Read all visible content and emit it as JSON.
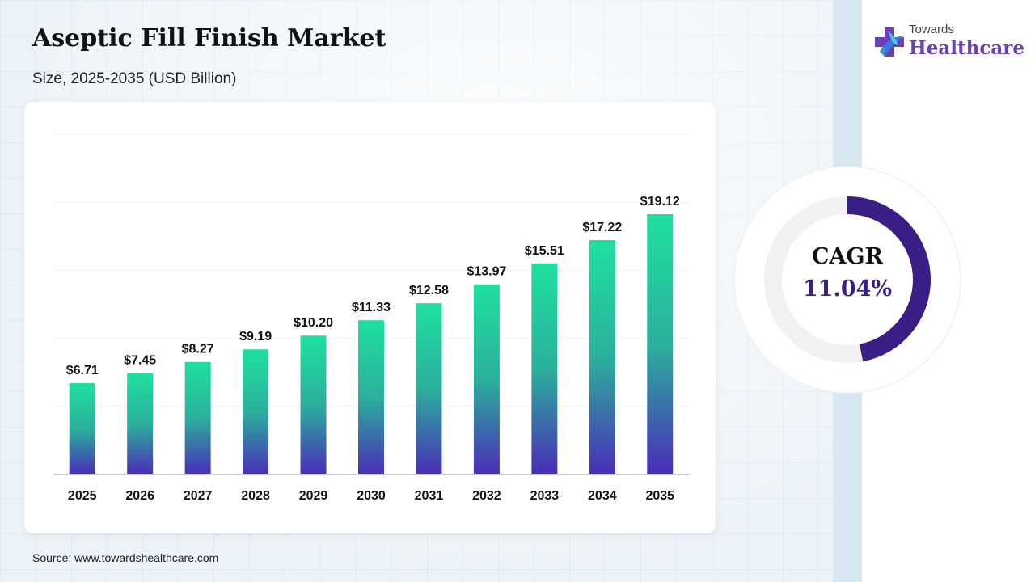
{
  "title": "Aseptic Fill Finish Market",
  "subtitle": "Size, 2025-2035 (USD Billion)",
  "source": "Source: www.towardshealthcare.com",
  "logo": {
    "line1": "Towards",
    "line2": "Healthcare",
    "icon": "cross-plus-icon"
  },
  "cagr": {
    "label": "CAGR",
    "value": "11.04%",
    "ring_fraction": 0.47
  },
  "colors": {
    "bar_top": "#1fe0a0",
    "bar_mid": "#2bb09c",
    "bar_bottom": "#4a2db8",
    "ring": "#3a1e86",
    "ring_track": "#f1f0f3",
    "logo_purple": "#6a3fb8",
    "logo_blue": "#2f7fe0"
  },
  "chart_data": {
    "type": "bar",
    "categories": [
      "2025",
      "2026",
      "2027",
      "2028",
      "2029",
      "2030",
      "2031",
      "2032",
      "2033",
      "2034",
      "2035"
    ],
    "values": [
      6.71,
      7.45,
      8.27,
      9.19,
      10.2,
      11.33,
      12.58,
      13.97,
      15.51,
      17.22,
      19.12
    ],
    "labels": [
      "$6.71",
      "$7.45",
      "$8.27",
      "$9.19",
      "$10.20",
      "$11.33",
      "$12.58",
      "$13.97",
      "$15.51",
      "$17.22",
      "$19.12"
    ],
    "title": "Aseptic Fill Finish Market",
    "xlabel": "",
    "ylabel": "",
    "ylim": [
      0,
      25
    ],
    "grid": true,
    "legend": "none"
  }
}
